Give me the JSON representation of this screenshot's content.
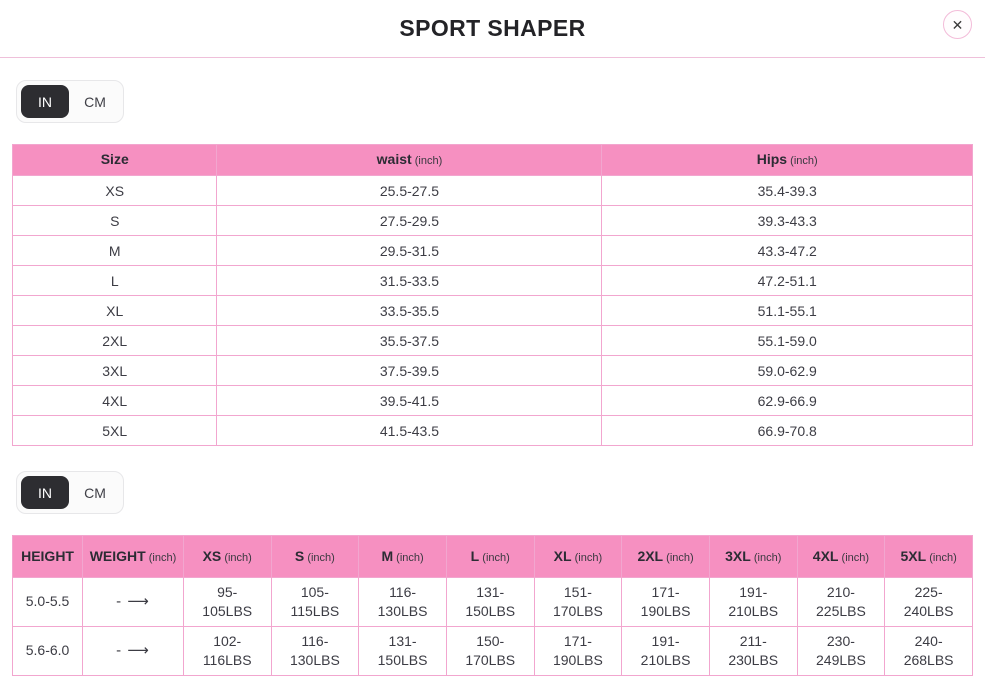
{
  "header": {
    "title": "SPORT SHAPER",
    "close_icon": "✕"
  },
  "unit_toggle": {
    "in_label": "IN",
    "cm_label": "CM",
    "selected": "IN"
  },
  "colors": {
    "header_pink": "#F690C1",
    "cell_border_pink": "#F2A6CF",
    "header_divider_pink": "#EFC0DA",
    "toggle_selected_dark": "#2D2D31",
    "title_text": "#232327"
  },
  "icons": {
    "close": "✕",
    "weight_arrow": "- ⟶"
  },
  "size_table": {
    "columns": [
      {
        "label": "Size",
        "unit": ""
      },
      {
        "label": "waist",
        "unit": "(inch)"
      },
      {
        "label": "Hips",
        "unit": "(inch)"
      }
    ],
    "rows": [
      [
        "XS",
        "25.5-27.5",
        "35.4-39.3"
      ],
      [
        "S",
        "27.5-29.5",
        "39.3-43.3"
      ],
      [
        "M",
        "29.5-31.5",
        "43.3-47.2"
      ],
      [
        "L",
        "31.5-33.5",
        "47.2-51.1"
      ],
      [
        "XL",
        "33.5-35.5",
        "51.1-55.1"
      ],
      [
        "2XL",
        "35.5-37.5",
        "55.1-59.0"
      ],
      [
        "3XL",
        "37.5-39.5",
        "59.0-62.9"
      ],
      [
        "4XL",
        "39.5-41.5",
        "62.9-66.9"
      ],
      [
        "5XL",
        "41.5-43.5",
        "66.9-70.8"
      ]
    ]
  },
  "weight_table": {
    "columns": [
      {
        "label": "HEIGHT",
        "unit": ""
      },
      {
        "label": "WEIGHT",
        "unit": "(inch)"
      },
      {
        "label": "XS",
        "unit": "(inch)"
      },
      {
        "label": "S",
        "unit": "(inch)"
      },
      {
        "label": "M",
        "unit": "(inch)"
      },
      {
        "label": "L",
        "unit": "(inch)"
      },
      {
        "label": "XL",
        "unit": "(inch)"
      },
      {
        "label": "2XL",
        "unit": "(inch)"
      },
      {
        "label": "3XL",
        "unit": "(inch)"
      },
      {
        "label": "4XL",
        "unit": "(inch)"
      },
      {
        "label": "5XL",
        "unit": "(inch)"
      }
    ],
    "rows": [
      [
        "5.0-5.5",
        "- ⟶",
        "95-\n105LBS",
        "105-\n115LBS",
        "116-\n130LBS",
        "131-\n150LBS",
        "151-\n170LBS",
        "171-\n190LBS",
        "191-\n210LBS",
        "210-\n225LBS",
        "225-\n240LBS"
      ],
      [
        "5.6-6.0",
        "- ⟶",
        "102-\n116LBS",
        "116-\n130LBS",
        "131-\n150LBS",
        "150-\n170LBS",
        "171-\n190LBS",
        "191-\n210LBS",
        "211-\n230LBS",
        "230-\n249LBS",
        "240-\n268LBS"
      ]
    ]
  }
}
